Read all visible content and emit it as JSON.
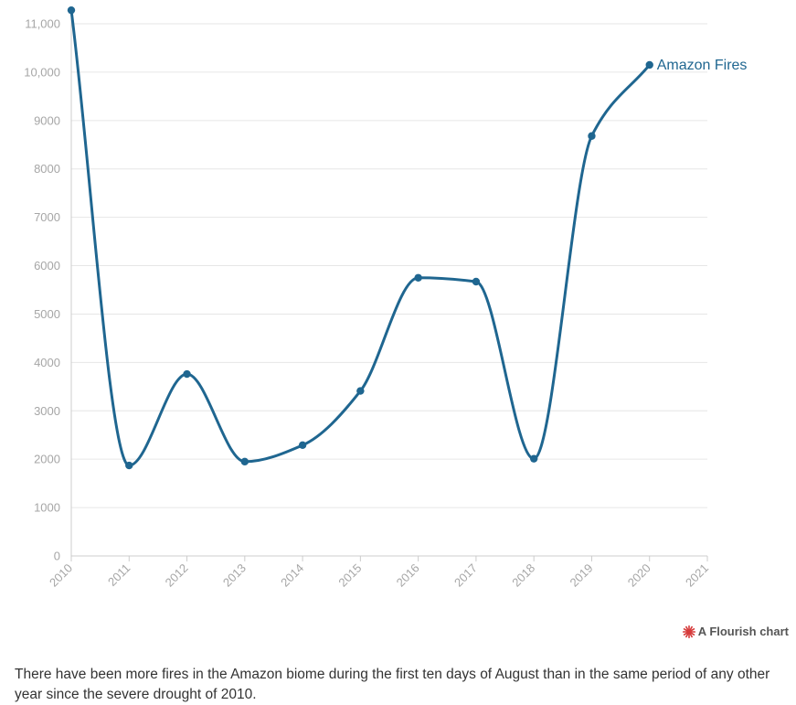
{
  "chart_data": {
    "type": "line",
    "x": [
      2010,
      2011,
      2012,
      2013,
      2014,
      2015,
      2016,
      2017,
      2018,
      2019,
      2020
    ],
    "series": [
      {
        "name": "Amazon Fires",
        "values": [
          11280,
          1870,
          3760,
          1950,
          2290,
          3410,
          5750,
          5670,
          2010,
          8680,
          10150
        ]
      }
    ],
    "x_ticks": [
      "2010",
      "2011",
      "2012",
      "2013",
      "2014",
      "2015",
      "2016",
      "2017",
      "2018",
      "2019",
      "2020",
      "2021"
    ],
    "y_ticks": [
      "0",
      "1000",
      "2000",
      "3000",
      "4000",
      "5000",
      "6000",
      "7000",
      "8000",
      "9000",
      "10,000",
      "11,000"
    ],
    "xlim": [
      2010,
      2021
    ],
    "ylim": [
      0,
      11000
    ],
    "grid": true,
    "color": "#1f6690",
    "xlabel": "",
    "ylabel": ""
  },
  "credit": {
    "label": "A Flourish chart",
    "icon": "flourish-logo-icon",
    "icon_color": "#d63b3b"
  },
  "caption": "There have been more fires in the Amazon biome during the first ten days of August than in the same period of any other year since the severe drought of 2010."
}
